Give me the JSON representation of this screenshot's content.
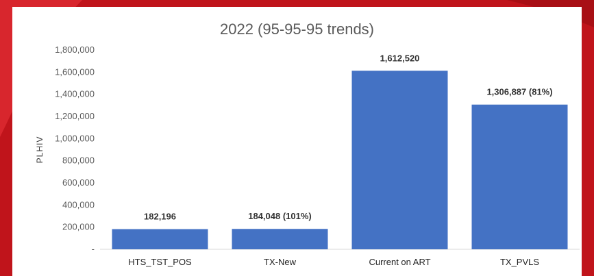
{
  "chart_data": {
    "type": "bar",
    "title": "2022 (95-95-95 trends)",
    "ylabel": "PLHIV",
    "xlabel": "",
    "categories": [
      "HTS_TST_POS",
      "TX-New",
      "Current on ART",
      "TX_PVLS"
    ],
    "values": [
      182196,
      184048,
      1612520,
      1306887
    ],
    "data_labels": [
      "182,196",
      "184,048 (101%)",
      "1,612,520",
      "1,306,887 (81%)"
    ],
    "ylim": [
      0,
      1800000
    ],
    "yticks": [
      0,
      200000,
      400000,
      600000,
      800000,
      1000000,
      1200000,
      1400000,
      1600000,
      1800000
    ],
    "ytick_labels": [
      "-",
      "200,000",
      "400,000",
      "600,000",
      "800,000",
      "1,000,000",
      "1,200,000",
      "1,400,000",
      "1,600,000",
      "1,800,000"
    ],
    "grid": false,
    "bar_color": "#4472c4"
  }
}
